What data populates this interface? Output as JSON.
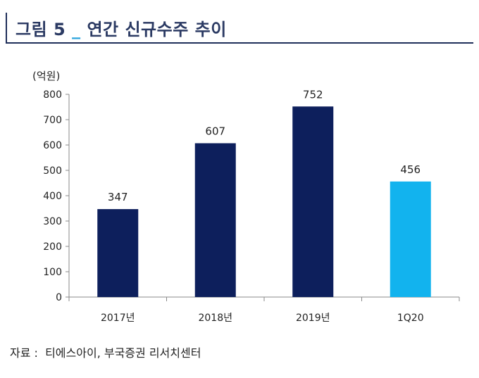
{
  "header": {
    "prefix": "그림 ",
    "number": "5",
    "separator": " _ ",
    "text": "연간 신규수주 추이"
  },
  "chart_data": {
    "type": "bar",
    "unit_label": "(억원)",
    "categories": [
      "2017년",
      "2018년",
      "2019년",
      "1Q20"
    ],
    "values": [
      347,
      607,
      752,
      456
    ],
    "data_labels": [
      "347",
      "607",
      "752",
      "456"
    ],
    "ylim": [
      0,
      800
    ],
    "yticks": [
      "0",
      "100",
      "200",
      "300",
      "400",
      "500",
      "600",
      "700",
      "800"
    ],
    "grid": false,
    "colors": [
      "#0d1f5c",
      "#0d1f5c",
      "#0d1f5c",
      "#12b3ee"
    ]
  },
  "source": "자료 :  티에스아이, 부국증권 리서치센터"
}
